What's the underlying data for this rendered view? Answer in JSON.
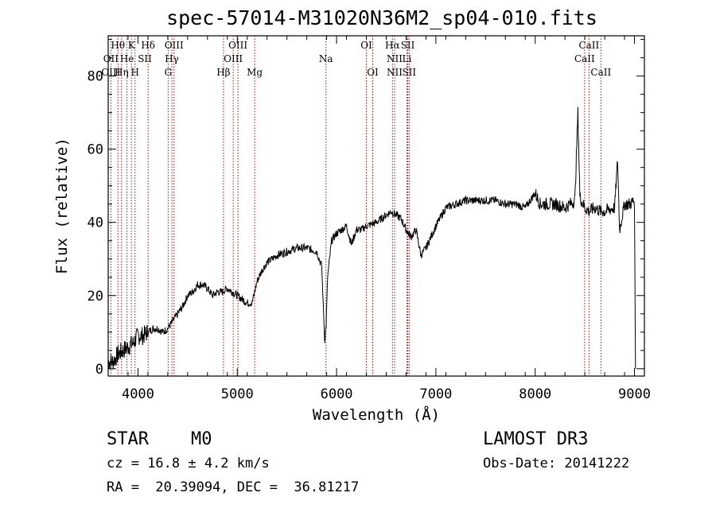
{
  "title": "spec-57014-M31020N36M2_sp04-010.fits",
  "chart_data": {
    "type": "line",
    "xlabel": "Wavelength (Å)",
    "ylabel": "Flux (relative)",
    "xlim": [
      3700,
      9100
    ],
    "ylim": [
      -2,
      91
    ],
    "xticks": [
      4000,
      5000,
      6000,
      7000,
      8000,
      9000
    ],
    "yticks": [
      0,
      20,
      40,
      60,
      80
    ],
    "series": [
      {
        "x": [
          3700,
          3750,
          3800,
          3850,
          3900,
          3950,
          4000,
          4050,
          4100,
          4150,
          4200,
          4250,
          4300,
          4350,
          4400,
          4450,
          4500,
          4550,
          4600,
          4650,
          4700,
          4750,
          4800,
          4850,
          4900,
          4950,
          5000,
          5050,
          5100,
          5150,
          5200,
          5250,
          5300,
          5400,
          5500,
          5600,
          5700,
          5800,
          5850,
          5880,
          5895,
          5910,
          5950,
          6000,
          6100,
          6150,
          6200,
          6250,
          6300,
          6400,
          6500,
          6550,
          6600,
          6650,
          6700,
          6750,
          6800,
          6850,
          6900,
          7000,
          7100,
          7200,
          7300,
          7400,
          7500,
          7600,
          7700,
          7800,
          7900,
          8000,
          8050,
          8100,
          8200,
          8300,
          8400,
          8430,
          8450,
          8500,
          8542,
          8600,
          8662,
          8700,
          8800,
          8830,
          8850,
          8900,
          8950,
          9000,
          9010
        ],
        "y": [
          2,
          2,
          4,
          5,
          6,
          7,
          9,
          9,
          10,
          11,
          11,
          10,
          11,
          13,
          15,
          17,
          20,
          21,
          23,
          23,
          22,
          20,
          21,
          21,
          22,
          21,
          20,
          19,
          18,
          18,
          24,
          27,
          29,
          31,
          32,
          33,
          33,
          32,
          28,
          8,
          12,
          25,
          35,
          37,
          39,
          34,
          38,
          38,
          39,
          40,
          42,
          43,
          42,
          41,
          38,
          36,
          38,
          31,
          33,
          39,
          44,
          45,
          46,
          46,
          46,
          46,
          45,
          45,
          44,
          48,
          45,
          45,
          45,
          44,
          46,
          70,
          47,
          44,
          43,
          44,
          43,
          43,
          44,
          57,
          38,
          45,
          45,
          46,
          0
        ]
      }
    ],
    "line_markers": {
      "color": "#a01010",
      "wavelengths": [
        3727,
        3798,
        3835,
        3889,
        3934,
        3970,
        4102,
        4304,
        4341,
        4363,
        4861,
        4959,
        5007,
        5175,
        5893,
        6300,
        6364,
        6563,
        6584,
        6708,
        6717,
        6731,
        8498,
        8542,
        8662
      ],
      "labels": [
        {
          "text": "Hθ",
          "x": 3798,
          "row": 1
        },
        {
          "text": "OII",
          "x": 3727,
          "row": 2
        },
        {
          "text": "OIII",
          "x": 3727,
          "row": 3
        },
        {
          "text": "K",
          "x": 3934,
          "row": 1
        },
        {
          "text": "He",
          "x": 3889,
          "row": 2
        },
        {
          "text": "Hη",
          "x": 3835,
          "row": 3
        },
        {
          "text": "SII",
          "x": 4069,
          "row": 2
        },
        {
          "text": "H",
          "x": 3970,
          "row": 3
        },
        {
          "text": "Hδ",
          "x": 4102,
          "row": 1
        },
        {
          "text": "OIII",
          "x": 4363,
          "row": 1
        },
        {
          "text": "Hγ",
          "x": 4341,
          "row": 2
        },
        {
          "text": "G",
          "x": 4304,
          "row": 3
        },
        {
          "text": "OIII",
          "x": 5007,
          "row": 1
        },
        {
          "text": "OIII",
          "x": 4959,
          "row": 2
        },
        {
          "text": "Hβ",
          "x": 4861,
          "row": 3
        },
        {
          "text": "Mg",
          "x": 5175,
          "row": 3
        },
        {
          "text": "Na",
          "x": 5893,
          "row": 2
        },
        {
          "text": "OI",
          "x": 6300,
          "row": 1
        },
        {
          "text": "OI",
          "x": 6364,
          "row": 3
        },
        {
          "text": "Hα",
          "x": 6563,
          "row": 1
        },
        {
          "text": "SII",
          "x": 6717,
          "row": 1
        },
        {
          "text": "NII",
          "x": 6584,
          "row": 2
        },
        {
          "text": "Li",
          "x": 6708,
          "row": 2
        },
        {
          "text": "NII",
          "x": 6584,
          "row": 3
        },
        {
          "text": "SII",
          "x": 6731,
          "row": 3
        },
        {
          "text": "CaII",
          "x": 8542,
          "row": 1
        },
        {
          "text": "CaII",
          "x": 8498,
          "row": 2
        },
        {
          "text": "CaII",
          "x": 8662,
          "row": 3
        }
      ]
    }
  },
  "info": {
    "object_type": "STAR",
    "subclass": "M0",
    "survey": "LAMOST DR3",
    "cz": "cz = 16.8 ± 4.2 km/s",
    "obs_date": "Obs-Date: 20141222",
    "coords": "RA =  20.39094, DEC =  36.81217"
  }
}
